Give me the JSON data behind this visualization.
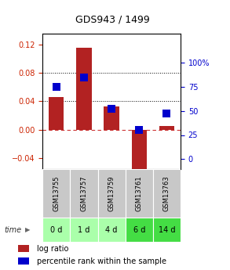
{
  "title": "GDS943 / 1499",
  "categories": [
    "GSM13755",
    "GSM13757",
    "GSM13759",
    "GSM13761",
    "GSM13763"
  ],
  "time_labels": [
    "0 d",
    "1 d",
    "4 d",
    "6 d",
    "14 d"
  ],
  "log_ratio": [
    0.046,
    0.115,
    0.033,
    -0.056,
    0.005
  ],
  "percentile_rank": [
    75,
    85,
    52,
    30,
    47
  ],
  "bar_color": "#b22222",
  "dot_color": "#0000cc",
  "ylim_left": [
    -0.055,
    0.135
  ],
  "ylim_right": [
    -10,
    130
  ],
  "yticks_left": [
    -0.04,
    0,
    0.04,
    0.08,
    0.12
  ],
  "yticks_right": [
    0,
    25,
    50,
    75,
    100
  ],
  "hline_dotted": [
    0.04,
    0.08
  ],
  "hline_zero_color": "#cc3333",
  "gsm_bg_color": "#c8c8c8",
  "time_bg_light": "#aaffaa",
  "time_bg_dark": "#44dd44",
  "time_bg_colors": [
    "#aaffaa",
    "#aaffaa",
    "#aaffaa",
    "#44dd44",
    "#44dd44"
  ],
  "bar_width": 0.55,
  "dot_size": 55,
  "title_fontsize": 9,
  "tick_fontsize": 7,
  "legend_fontsize": 7,
  "table_fontsize": 6,
  "time_fontsize": 7
}
